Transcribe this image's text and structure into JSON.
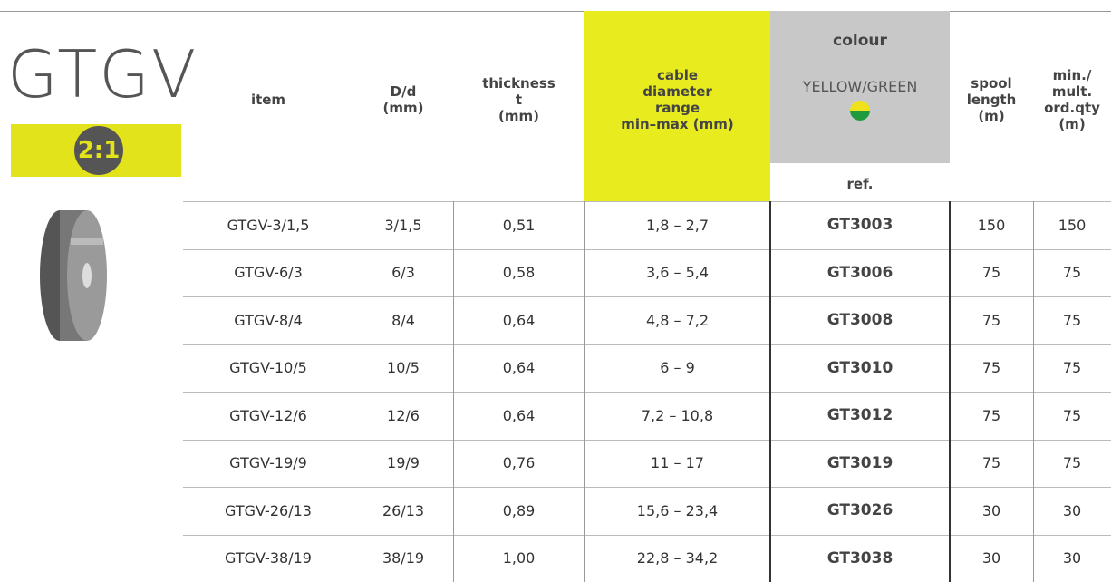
{
  "header": {
    "title": "GTGV",
    "badge": "2:1"
  },
  "table": {
    "columns": [
      {
        "lines": [
          "item"
        ]
      },
      {
        "lines": [
          "D/d",
          "(mm)"
        ]
      },
      {
        "lines": [
          "thickness",
          "t",
          "(mm)"
        ]
      },
      {
        "lines": [
          "cable",
          "diameter",
          "range",
          "min–max (mm)"
        ]
      },
      {
        "title": "colour",
        "colour_name": "YELLOW/GREEN",
        "lines": [
          "ref."
        ]
      },
      {
        "lines": [
          "spool",
          "length",
          "(m)"
        ]
      },
      {
        "lines": [
          "min./",
          "mult.",
          "ord.qty",
          "(m)"
        ]
      }
    ],
    "rows": [
      [
        "GTGV-3/1,5",
        "3/1,5",
        "0,51",
        "1,8 – 2,7",
        "GT3003",
        "150",
        "150"
      ],
      [
        "GTGV-6/3",
        "6/3",
        "0,58",
        "3,6 – 5,4",
        "GT3006",
        "75",
        "75"
      ],
      [
        "GTGV-8/4",
        "8/4",
        "0,64",
        "4,8 – 7,2",
        "GT3008",
        "75",
        "75"
      ],
      [
        "GTGV-10/5",
        "10/5",
        "0,64",
        "6 – 9",
        "GT3010",
        "75",
        "75"
      ],
      [
        "GTGV-12/6",
        "12/6",
        "0,64",
        "7,2 – 10,8",
        "GT3012",
        "75",
        "75"
      ],
      [
        "GTGV-19/9",
        "19/9",
        "0,76",
        "11 – 17",
        "GT3019",
        "75",
        "75"
      ],
      [
        "GTGV-26/13",
        "26/13",
        "0,89",
        "15,6 – 23,4",
        "GT3026",
        "30",
        "30"
      ],
      [
        "GTGV-38/19",
        "38/19",
        "1,00",
        "22,8 – 34,2",
        "GT3038",
        "30",
        "30"
      ]
    ]
  }
}
